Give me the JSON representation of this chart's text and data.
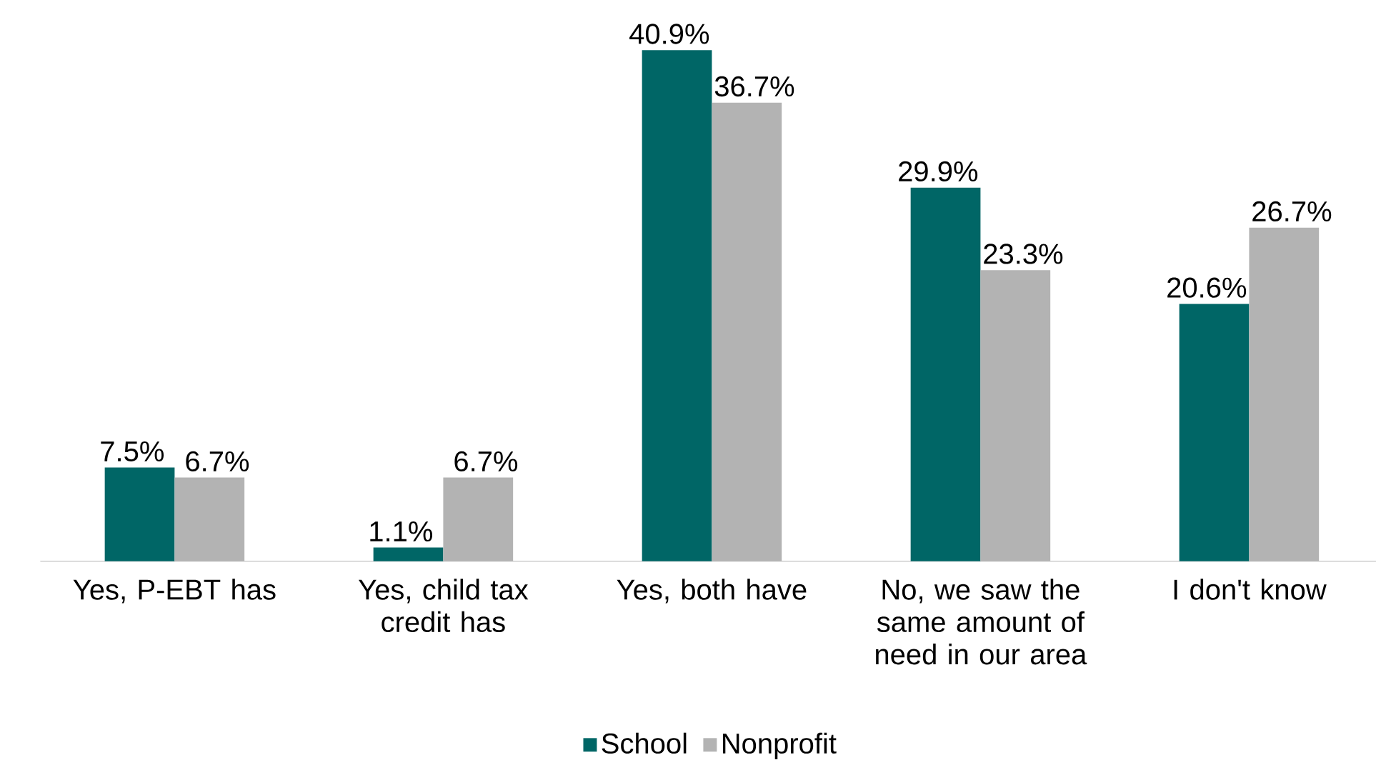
{
  "chart_data": {
    "type": "bar",
    "categories": [
      "Yes, P-EBT has",
      "Yes, child tax credit has",
      "Yes, both have",
      "No, we saw the same amount of need in our area",
      "I don't know"
    ],
    "series": [
      {
        "name": "School",
        "color": "#006666",
        "values": [
          7.5,
          1.1,
          40.9,
          29.9,
          20.6
        ],
        "value_labels": [
          "7.5%",
          "1.1%",
          "40.9%",
          "29.9%",
          "20.6%"
        ]
      },
      {
        "name": "Nonprofit",
        "color": "#b3b3b3",
        "values": [
          6.7,
          6.7,
          36.7,
          23.3,
          26.7
        ],
        "value_labels": [
          "6.7%",
          "6.7%",
          "36.7%",
          "23.3%",
          "26.7%"
        ]
      }
    ],
    "legend": "bottom"
  }
}
